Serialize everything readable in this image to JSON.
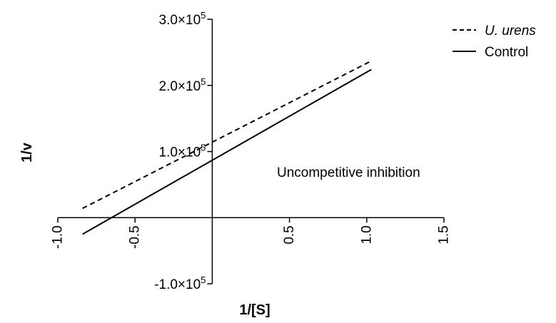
{
  "chart_data": {
    "type": "line",
    "title": "",
    "xlabel": "1/[S]",
    "ylabel": "1/v",
    "xlim": [
      -1.0,
      1.5
    ],
    "ylim": [
      -100000,
      300000
    ],
    "x_ticks": [
      {
        "value": -1.0,
        "label": "-1.0"
      },
      {
        "value": -0.5,
        "label": "-0.5"
      },
      {
        "value": 0.5,
        "label": "0.5"
      },
      {
        "value": 1.0,
        "label": "1.0"
      },
      {
        "value": 1.5,
        "label": "1.5"
      }
    ],
    "y_ticks": [
      {
        "value": 300000,
        "mantissa": "3.0×10",
        "exp": "5"
      },
      {
        "value": 200000,
        "mantissa": "2.0×10",
        "exp": "5"
      },
      {
        "value": 100000,
        "mantissa": "1.0×10",
        "exp": "5"
      },
      {
        "value": -100000,
        "mantissa": "-1.0×10",
        "exp": "5"
      }
    ],
    "grid": false,
    "legend_position": "top-right",
    "annotation": "Uncompetitive inhibition",
    "series": [
      {
        "name": "U. urens",
        "style": "dashed",
        "color": "#000000",
        "x": [
          -0.84,
          1.03
        ],
        "y": [
          14000,
          237000
        ]
      },
      {
        "name": "Control",
        "style": "solid",
        "color": "#000000",
        "x": [
          -0.84,
          1.03
        ],
        "y": [
          -25000,
          224000
        ]
      }
    ]
  }
}
